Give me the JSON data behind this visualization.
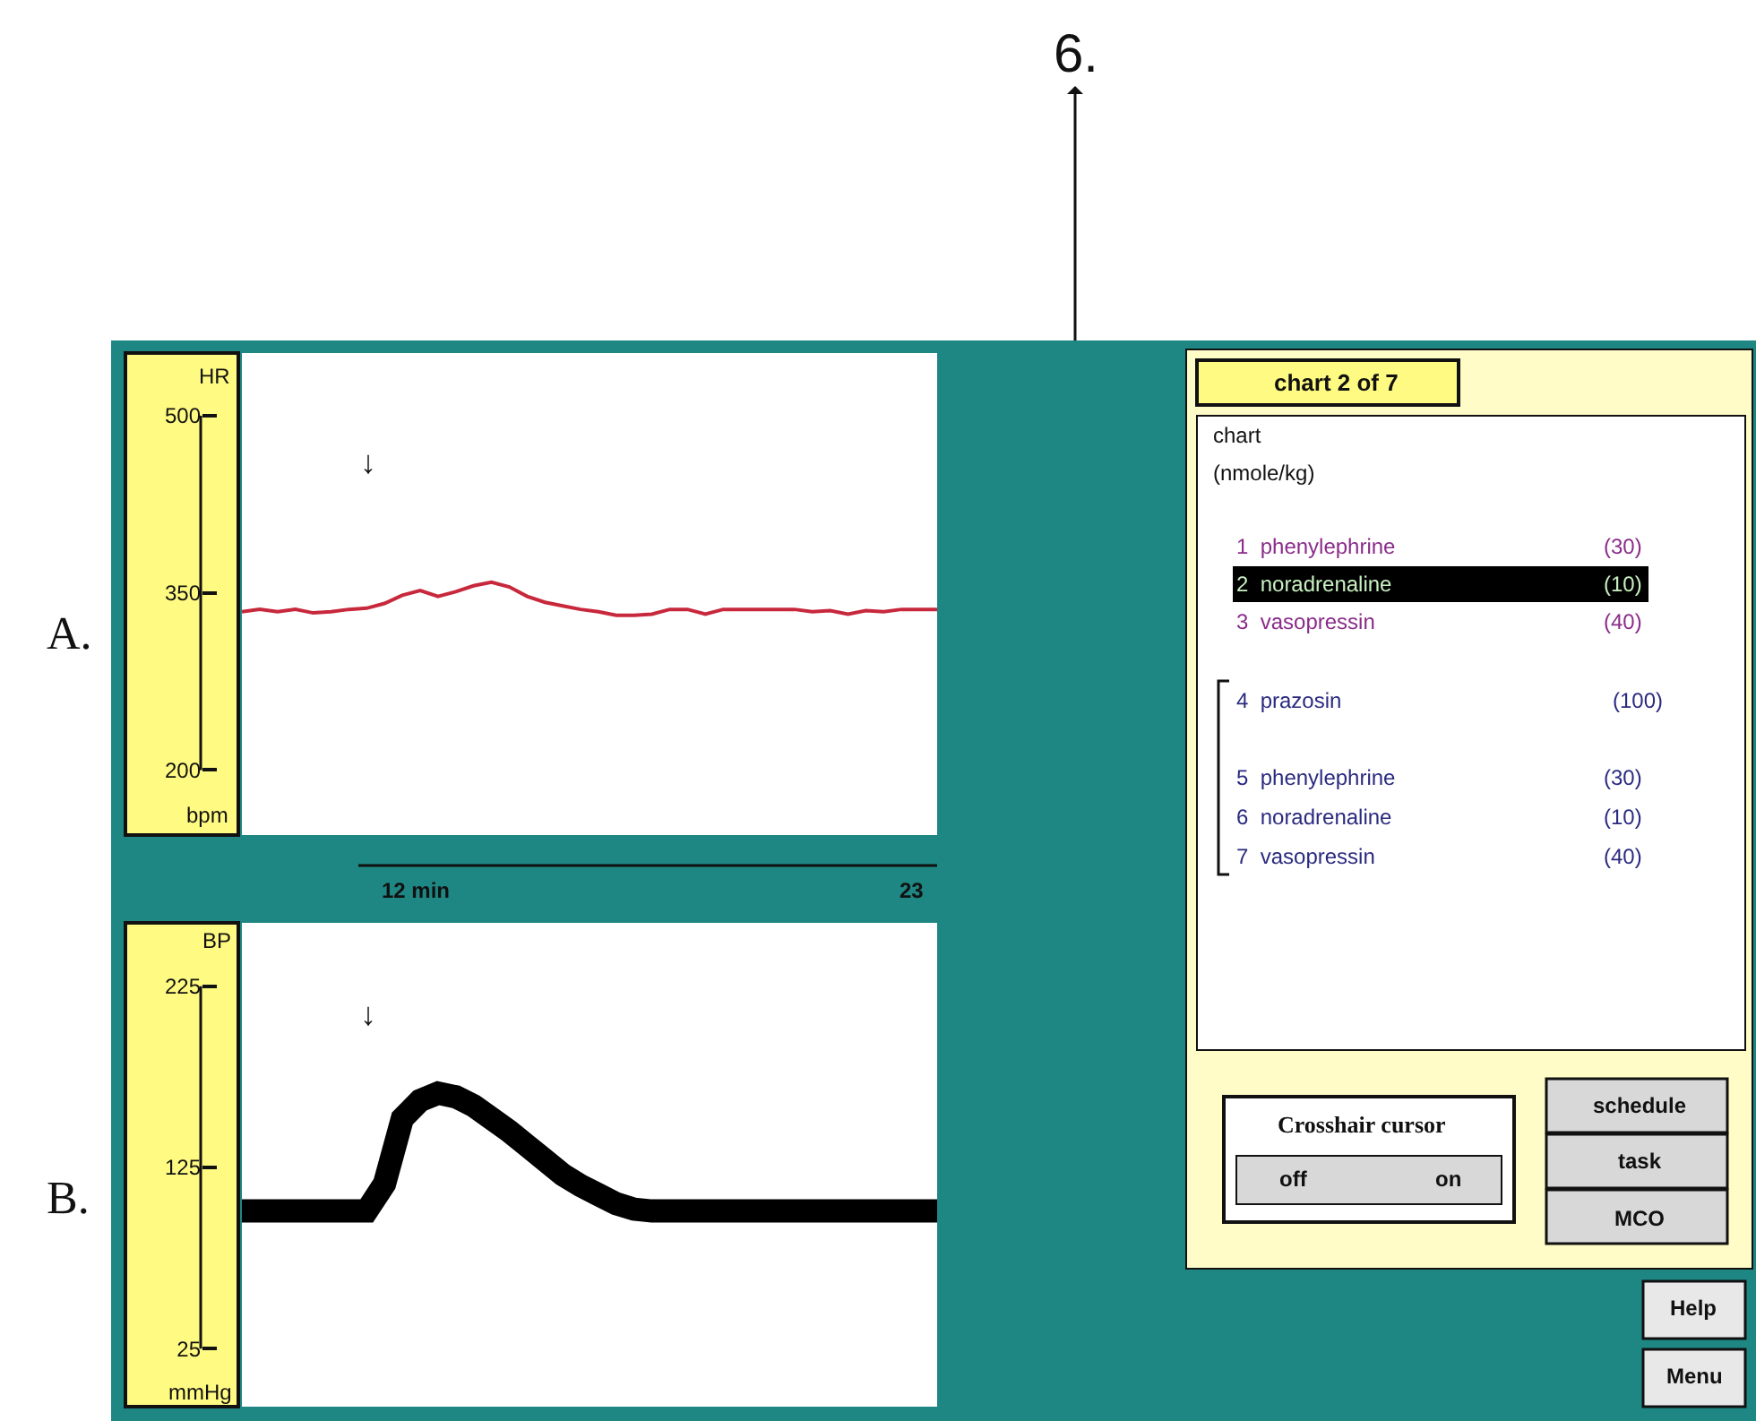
{
  "chart_data": [
    {
      "type": "line",
      "title": "A.",
      "ylabel": "HR",
      "categories": [
        null,
        null,
        null,
        null,
        null,
        null,
        null,
        null,
        null,
        null,
        null,
        null,
        null,
        null,
        null,
        null,
        null,
        null,
        null,
        null,
        null,
        null,
        null,
        null,
        null,
        null,
        null,
        null,
        null,
        null,
        null,
        null,
        null,
        null,
        null,
        null,
        null,
        null,
        null,
        null
      ],
      "series": [
        {
          "color": "#c8283c",
          "values": [
            334,
            336,
            334,
            336,
            333,
            334,
            336,
            337,
            341,
            348,
            352,
            347,
            351,
            356,
            359,
            355,
            347,
            342,
            339,
            336,
            334,
            331,
            331,
            332,
            336,
            336,
            332,
            336,
            336,
            336,
            336,
            336,
            334,
            335,
            332,
            335,
            334,
            336,
            336,
            336
          ]
        }
      ],
      "ylim": [
        145,
        553
      ],
      "yticks": [
        200,
        350,
        500
      ],
      "tick_labels": "y",
      "annotations": [
        "↓",
        "bpm",
        "12 min",
        "23"
      ]
    },
    {
      "type": "line",
      "title": "B.",
      "ylabel": "BP",
      "categories": [
        null,
        null,
        null,
        null,
        null,
        null,
        null,
        null,
        null,
        null,
        null,
        null,
        null,
        null,
        null,
        null,
        null,
        null,
        null,
        null,
        null,
        null,
        null,
        null,
        null,
        null,
        null,
        null,
        null,
        null,
        null,
        null,
        null,
        null,
        null,
        null,
        null,
        null,
        null,
        null
      ],
      "series": [
        {
          "color": "#000000",
          "values": [
            101,
            101,
            101,
            101,
            101,
            101,
            101,
            101,
            116,
            152,
            162,
            166,
            164,
            159,
            152,
            145,
            137,
            129,
            121,
            115,
            110,
            105,
            102,
            101,
            101,
            101,
            101,
            101,
            101,
            101,
            101,
            101,
            101,
            101,
            101,
            101,
            101,
            101,
            101,
            101
          ]
        }
      ],
      "ylim": [
        -7,
        260
      ],
      "yticks": [
        25,
        125,
        225
      ],
      "tick_labels": "y",
      "annotations": [
        "↓",
        "mmHg"
      ]
    },
    {
      "type": "other",
      "annotations": [
        "6.",
        "chart 2 of 7",
        "chart",
        "(nmole/kg)",
        "1  phenylephrine",
        "(30)",
        "2  noradrenaline",
        "(10)",
        "3  vasopressin",
        "(40)",
        "4  prazosin",
        "(100)",
        "5  phenylephrine",
        "(30)",
        "6  noradrenaline",
        "(10)",
        "7  vasopressin",
        "(40)",
        "Crosshair cursor",
        "off",
        "on",
        "schedule",
        "task",
        "MCO",
        "Help",
        "Menu"
      ]
    }
  ]
}
